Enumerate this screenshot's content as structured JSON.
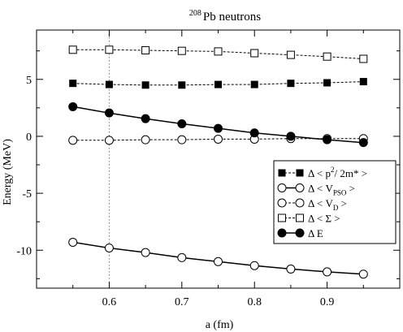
{
  "chart_data": {
    "type": "line",
    "title": "208 Pb neutrons",
    "title_sup": "208",
    "title_main": "Pb neutrons",
    "xlabel": "a (fm)",
    "ylabel": "Energy (MeV)",
    "xlim": [
      0.5,
      1.0
    ],
    "ylim": [
      -13.33,
      9.33
    ],
    "x_ticks": [
      0.6,
      0.7,
      0.8,
      0.9
    ],
    "x_tick_labels": [
      "0.6",
      "0.7",
      "0.8",
      "0.9"
    ],
    "y_ticks": [
      5,
      0,
      -5,
      -10
    ],
    "y_tick_labels": [
      "5",
      "0",
      "-5",
      "-10"
    ],
    "reference_line_x": 0.6,
    "x": [
      0.55,
      0.6,
      0.65,
      0.7,
      0.75,
      0.8,
      0.85,
      0.9,
      0.95
    ],
    "legend_position": "right",
    "series": [
      {
        "name": "Δ < p²/ 2m* >",
        "legend_parts": [
          "Δ < p",
          "2",
          "/ 2m* >"
        ],
        "marker": "filled-square",
        "line": "dashed",
        "values": [
          4.65,
          4.55,
          4.5,
          4.5,
          4.55,
          4.55,
          4.65,
          4.7,
          4.8
        ]
      },
      {
        "name": "Δ < V_PSO >",
        "legend_parts": [
          "Δ < V",
          "PSO",
          " >"
        ],
        "marker": "open-circle",
        "line": "solid",
        "values": [
          -9.3,
          -9.8,
          -10.2,
          -10.65,
          -11.0,
          -11.35,
          -11.65,
          -11.9,
          -12.1
        ]
      },
      {
        "name": "Δ < V_D >",
        "legend_parts": [
          "Δ < V",
          "D",
          " >"
        ],
        "marker": "open-circle",
        "line": "dashed",
        "values": [
          -0.35,
          -0.35,
          -0.3,
          -0.3,
          -0.25,
          -0.25,
          -0.2,
          -0.2,
          -0.2
        ]
      },
      {
        "name": "Δ < Σ >",
        "legend_parts": [
          "Δ < Σ >",
          "",
          ""
        ],
        "marker": "open-square",
        "line": "dashed",
        "values": [
          7.6,
          7.6,
          7.55,
          7.5,
          7.45,
          7.3,
          7.15,
          7.0,
          6.8
        ]
      },
      {
        "name": "Δ E",
        "legend_parts": [
          "Δ E",
          "",
          ""
        ],
        "marker": "filled-circle",
        "line": "solid",
        "values": [
          2.6,
          2.05,
          1.55,
          1.1,
          0.7,
          0.3,
          0.0,
          -0.3,
          -0.55
        ]
      }
    ]
  }
}
